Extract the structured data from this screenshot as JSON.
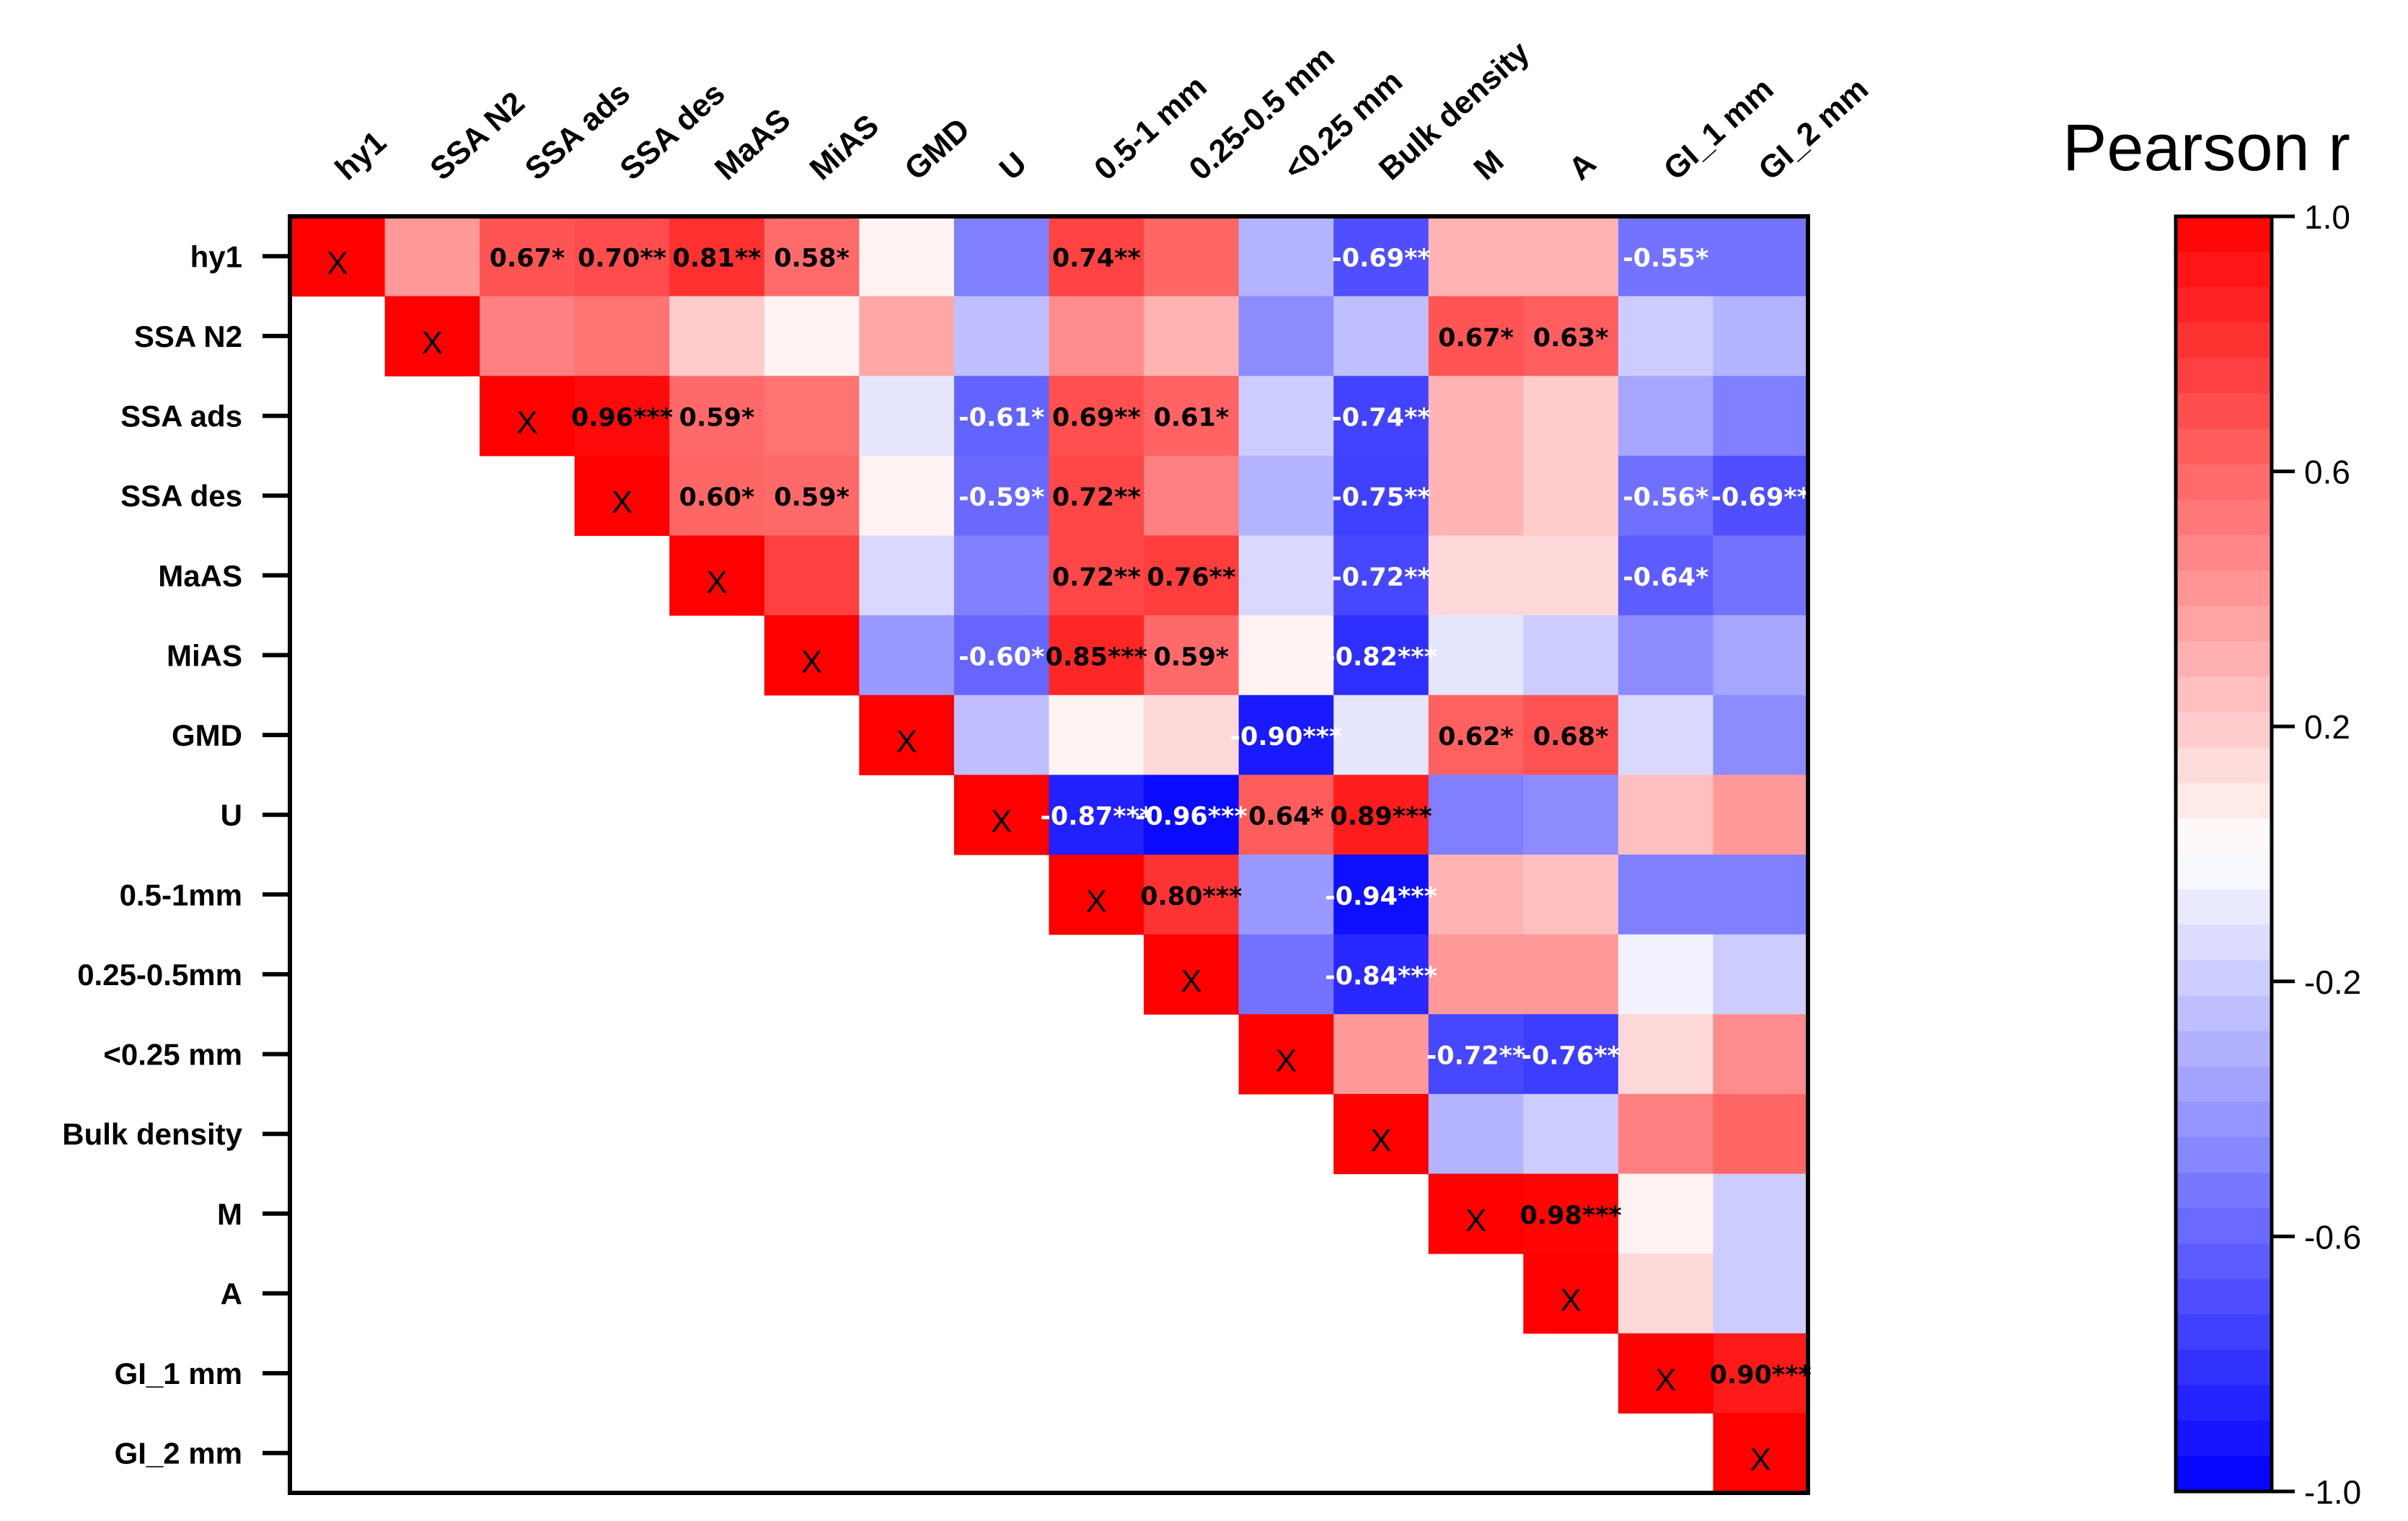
{
  "chart_data": {
    "type": "heatmap",
    "title": "",
    "variables": [
      "hy1",
      "SSA N2",
      "SSA ads",
      "SSA des",
      "MaAS",
      "MiAS",
      "GMD",
      "U",
      "0.5-1 mm",
      "0.25-0.5 mm",
      "<0.25 mm",
      "Bulk density",
      "M",
      "A",
      "GI_1 mm",
      "GI_2 mm"
    ],
    "row_labels": [
      "hy1",
      "SSA N2",
      "SSA ads",
      "SSA des",
      "MaAS",
      "MiAS",
      "GMD",
      "U",
      "0.5-1mm",
      "0.25-0.5mm",
      "<0.25 mm",
      "Bulk density",
      "M",
      "A",
      "GI_1 mm",
      "GI_2 mm"
    ],
    "col_labels": [
      "hy1",
      "SSA N2",
      "SSA ads",
      "SSA des",
      "MaAS",
      "MiAS",
      "GMD",
      "U",
      "0.5-1 mm",
      "0.25-0.5 mm",
      "<0.25 mm",
      "Bulk density",
      "M",
      "A",
      "GI_1 mm",
      "GI_2 mm"
    ],
    "diagonal_marker": "X",
    "values": [
      [
        null,
        0.4,
        0.67,
        0.7,
        0.81,
        0.58,
        0.05,
        -0.5,
        0.74,
        0.6,
        -0.3,
        -0.69,
        0.3,
        0.3,
        -0.55,
        -0.55
      ],
      [
        null,
        null,
        0.5,
        0.55,
        0.2,
        0.05,
        0.35,
        -0.25,
        0.45,
        0.3,
        -0.45,
        -0.25,
        0.67,
        0.63,
        -0.2,
        -0.3
      ],
      [
        null,
        null,
        null,
        0.96,
        0.59,
        0.55,
        -0.1,
        -0.61,
        0.69,
        0.61,
        -0.2,
        -0.74,
        0.3,
        0.2,
        -0.35,
        -0.5
      ],
      [
        null,
        null,
        null,
        null,
        0.6,
        0.59,
        0.05,
        -0.59,
        0.72,
        0.5,
        -0.3,
        -0.75,
        0.3,
        0.2,
        -0.56,
        -0.69
      ],
      [
        null,
        null,
        null,
        null,
        null,
        0.75,
        -0.15,
        -0.5,
        0.72,
        0.76,
        -0.15,
        -0.72,
        0.15,
        0.15,
        -0.64,
        -0.55
      ],
      [
        null,
        null,
        null,
        null,
        null,
        null,
        -0.4,
        -0.6,
        0.85,
        0.59,
        0.05,
        -0.82,
        -0.1,
        -0.2,
        -0.45,
        -0.35
      ],
      [
        null,
        null,
        null,
        null,
        null,
        null,
        null,
        -0.25,
        0.05,
        0.15,
        -0.9,
        -0.1,
        0.62,
        0.68,
        -0.15,
        -0.45
      ],
      [
        null,
        null,
        null,
        null,
        null,
        null,
        null,
        null,
        -0.87,
        -0.96,
        0.64,
        0.89,
        -0.5,
        -0.45,
        0.25,
        0.4
      ],
      [
        null,
        null,
        null,
        null,
        null,
        null,
        null,
        null,
        null,
        0.8,
        -0.4,
        -0.94,
        0.3,
        0.25,
        -0.5,
        -0.5
      ],
      [
        null,
        null,
        null,
        null,
        null,
        null,
        null,
        null,
        null,
        null,
        -0.55,
        -0.84,
        0.4,
        0.4,
        -0.05,
        -0.2
      ],
      [
        null,
        null,
        null,
        null,
        null,
        null,
        null,
        null,
        null,
        null,
        null,
        0.4,
        -0.72,
        -0.76,
        0.15,
        0.45
      ],
      [
        null,
        null,
        null,
        null,
        null,
        null,
        null,
        null,
        null,
        null,
        null,
        null,
        -0.3,
        -0.2,
        0.5,
        0.6
      ],
      [
        null,
        null,
        null,
        null,
        null,
        null,
        null,
        null,
        null,
        null,
        null,
        null,
        null,
        0.98,
        0.05,
        -0.2
      ],
      [
        null,
        null,
        null,
        null,
        null,
        null,
        null,
        null,
        null,
        null,
        null,
        null,
        null,
        null,
        0.15,
        -0.2
      ],
      [
        null,
        null,
        null,
        null,
        null,
        null,
        null,
        null,
        null,
        null,
        null,
        null,
        null,
        null,
        null,
        0.9
      ],
      [
        null,
        null,
        null,
        null,
        null,
        null,
        null,
        null,
        null,
        null,
        null,
        null,
        null,
        null,
        null,
        null
      ]
    ],
    "annotations": [
      {
        "row": 0,
        "col": 2,
        "text": "0.67*"
      },
      {
        "row": 0,
        "col": 3,
        "text": "0.70**"
      },
      {
        "row": 0,
        "col": 4,
        "text": "0.81**"
      },
      {
        "row": 0,
        "col": 5,
        "text": "0.58*"
      },
      {
        "row": 0,
        "col": 8,
        "text": "0.74**"
      },
      {
        "row": 0,
        "col": 11,
        "text": "-0.69**"
      },
      {
        "row": 0,
        "col": 14,
        "text": "-0.55*"
      },
      {
        "row": 1,
        "col": 12,
        "text": "0.67*"
      },
      {
        "row": 1,
        "col": 13,
        "text": "0.63*"
      },
      {
        "row": 2,
        "col": 3,
        "text": "0.96***"
      },
      {
        "row": 2,
        "col": 4,
        "text": "0.59*"
      },
      {
        "row": 2,
        "col": 7,
        "text": "-0.61*"
      },
      {
        "row": 2,
        "col": 8,
        "text": "0.69**"
      },
      {
        "row": 2,
        "col": 9,
        "text": "0.61*"
      },
      {
        "row": 2,
        "col": 11,
        "text": "-0.74**"
      },
      {
        "row": 3,
        "col": 4,
        "text": "0.60*"
      },
      {
        "row": 3,
        "col": 5,
        "text": "0.59*"
      },
      {
        "row": 3,
        "col": 7,
        "text": "-0.59*"
      },
      {
        "row": 3,
        "col": 8,
        "text": "0.72**"
      },
      {
        "row": 3,
        "col": 11,
        "text": "-0.75**"
      },
      {
        "row": 3,
        "col": 14,
        "text": "-0.56*"
      },
      {
        "row": 3,
        "col": 15,
        "text": "-0.69**"
      },
      {
        "row": 4,
        "col": 8,
        "text": "0.72**"
      },
      {
        "row": 4,
        "col": 9,
        "text": "0.76**"
      },
      {
        "row": 4,
        "col": 11,
        "text": "-0.72**"
      },
      {
        "row": 4,
        "col": 14,
        "text": "-0.64*"
      },
      {
        "row": 5,
        "col": 7,
        "text": "-0.60*"
      },
      {
        "row": 5,
        "col": 8,
        "text": "0.85***"
      },
      {
        "row": 5,
        "col": 9,
        "text": "0.59*"
      },
      {
        "row": 5,
        "col": 11,
        "text": "-0.82***"
      },
      {
        "row": 6,
        "col": 10,
        "text": "-0.90***"
      },
      {
        "row": 6,
        "col": 12,
        "text": "0.62*"
      },
      {
        "row": 6,
        "col": 13,
        "text": "0.68*"
      },
      {
        "row": 7,
        "col": 8,
        "text": "-0.87***"
      },
      {
        "row": 7,
        "col": 9,
        "text": "-0.96***"
      },
      {
        "row": 7,
        "col": 10,
        "text": "0.64*"
      },
      {
        "row": 7,
        "col": 11,
        "text": "0.89***"
      },
      {
        "row": 8,
        "col": 9,
        "text": "0.80***"
      },
      {
        "row": 8,
        "col": 11,
        "text": "-0.94***"
      },
      {
        "row": 9,
        "col": 11,
        "text": "-0.84***"
      },
      {
        "row": 10,
        "col": 12,
        "text": "-0.72**"
      },
      {
        "row": 10,
        "col": 13,
        "text": "-0.76**"
      },
      {
        "row": 12,
        "col": 13,
        "text": "0.98***"
      },
      {
        "row": 14,
        "col": 15,
        "text": "0.90***"
      }
    ],
    "colorbar": {
      "title": "Pearson r",
      "range": [
        -1.0,
        1.0
      ],
      "tick_labels": [
        "1.0",
        "0.6",
        "0.2",
        "-0.2",
        "-0.6",
        "-1.0"
      ],
      "tick_values": [
        1.0,
        0.6,
        0.2,
        -0.2,
        -0.6,
        -1.0
      ],
      "low_color": "#0000ff",
      "mid_color": "#ffffff",
      "high_color": "#ff0000",
      "steps": 36
    }
  }
}
